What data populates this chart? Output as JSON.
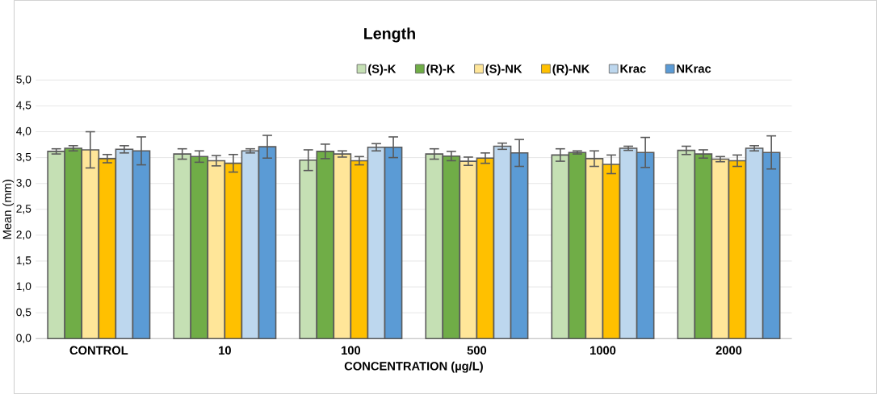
{
  "chart_data": {
    "type": "bar",
    "title": "Length",
    "xlabel": "CONCENTRATION (µg/L)",
    "ylabel": "Mean (mm)",
    "categories": [
      "CONTROL",
      "10",
      "100",
      "500",
      "1000",
      "2000"
    ],
    "series": [
      {
        "name": "(S)-K",
        "color": "#c5e0b4",
        "values": [
          3.62,
          3.57,
          3.45,
          3.57,
          3.55,
          3.64
        ],
        "errors": [
          0.05,
          0.1,
          0.2,
          0.1,
          0.12,
          0.08
        ]
      },
      {
        "name": "(R)-K",
        "color": "#70ad47",
        "values": [
          3.68,
          3.52,
          3.62,
          3.53,
          3.6,
          3.57
        ],
        "errors": [
          0.05,
          0.11,
          0.14,
          0.09,
          0.03,
          0.08
        ]
      },
      {
        "name": "(S)-NK",
        "color": "#ffe699",
        "values": [
          3.65,
          3.44,
          3.57,
          3.43,
          3.48,
          3.47
        ],
        "errors": [
          0.35,
          0.1,
          0.06,
          0.08,
          0.15,
          0.05
        ]
      },
      {
        "name": "(R)-NK",
        "color": "#ffc000",
        "values": [
          3.48,
          3.39,
          3.44,
          3.49,
          3.37,
          3.44
        ],
        "errors": [
          0.08,
          0.17,
          0.08,
          0.1,
          0.18,
          0.11
        ]
      },
      {
        "name": "Krac",
        "color": "#bdd7ee",
        "values": [
          3.66,
          3.63,
          3.7,
          3.72,
          3.68,
          3.68
        ],
        "errors": [
          0.07,
          0.04,
          0.07,
          0.06,
          0.04,
          0.05
        ]
      },
      {
        "name": "NKrac",
        "color": "#5b9bd5",
        "values": [
          3.63,
          3.71,
          3.7,
          3.59,
          3.6,
          3.6
        ],
        "errors": [
          0.27,
          0.22,
          0.2,
          0.26,
          0.29,
          0.32
        ]
      }
    ],
    "ylim": [
      0,
      5
    ],
    "yticks": [
      {
        "value": 0,
        "label": "0,0"
      },
      {
        "value": 0.5,
        "label": "0,5"
      },
      {
        "value": 1,
        "label": "1,0"
      },
      {
        "value": 1.5,
        "label": "1,5"
      },
      {
        "value": 2,
        "label": "2,0"
      },
      {
        "value": 2.5,
        "label": "2,5"
      },
      {
        "value": 3,
        "label": "3,0"
      },
      {
        "value": 3.5,
        "label": "3,5"
      },
      {
        "value": 4,
        "label": "4,0"
      },
      {
        "value": 4.5,
        "label": "4,5"
      },
      {
        "value": 5,
        "label": "5,0"
      }
    ],
    "grid": "y",
    "legend": "top"
  }
}
